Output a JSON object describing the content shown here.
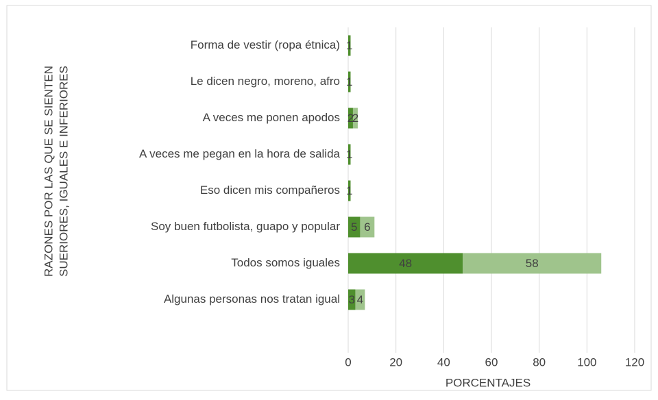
{
  "chart_data": {
    "type": "bar",
    "orientation": "horizontal",
    "stacked": true,
    "y_label": [
      "RAZONES POR LAS QUE SE SIENTEN",
      "SUERIORES, IGUALES E INFERIORES"
    ],
    "x_label": "PORCENTAJES",
    "categories": [
      "Forma de vestir (ropa étnica)",
      "Le dicen negro, moreno, afro",
      "A veces me ponen apodos",
      "A veces me pegan en la hora de salida",
      "Eso dicen mis compañeros",
      "Soy buen futbolista, guapo y popular",
      "Todos somos iguales",
      "Algunas personas nos tratan igual"
    ],
    "series": [
      {
        "color": "#4f8f2e",
        "values": [
          1,
          1,
          2,
          1,
          1,
          5,
          48,
          3
        ]
      },
      {
        "color": "#9fc48c",
        "values": [
          null,
          null,
          2,
          null,
          null,
          6,
          58,
          4
        ]
      }
    ],
    "xlim": [
      0,
      120
    ],
    "xticks": [
      0,
      20,
      40,
      60,
      80,
      100,
      120
    ],
    "grid": true
  }
}
